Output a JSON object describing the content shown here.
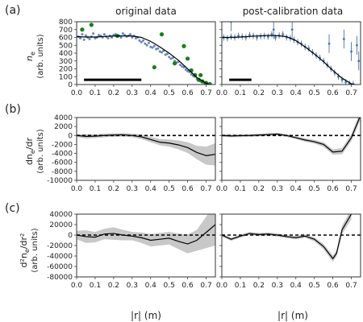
{
  "figure": {
    "columns": [
      "original data",
      "post-calibration data"
    ],
    "row_labels": [
      "(a)",
      "(b)",
      "(c)"
    ],
    "xlabel": "|r| (m)",
    "x_ticks": [
      0.0,
      0.1,
      0.2,
      0.3,
      0.4,
      0.5,
      0.6,
      0.7
    ],
    "ylabels": [
      [
        "n",
        "e",
        "(arb. units)"
      ],
      [
        "dn",
        "e",
        "/dr",
        "(arb. units)"
      ],
      [
        "d²n",
        "e",
        "/dr²",
        "(arb. units)"
      ]
    ],
    "colors": {
      "data": "#4c72b0",
      "outlier": "#1a7f1a",
      "band": "#c8c8c8",
      "fit": "#000000"
    }
  },
  "chart_data": [
    {
      "type": "scatter",
      "panel": "a-left",
      "xlim": [
        0,
        0.75
      ],
      "ylim": [
        0,
        800
      ],
      "yticks": [
        0,
        100,
        200,
        300,
        400,
        500,
        600,
        700,
        800
      ],
      "bar_extent": [
        0.04,
        0.35
      ],
      "series": [
        {
          "x": [
            0.01,
            0.02,
            0.03,
            0.04,
            0.05,
            0.06,
            0.07,
            0.08,
            0.09,
            0.1,
            0.11,
            0.12,
            0.13,
            0.14,
            0.15,
            0.16,
            0.17,
            0.18,
            0.19,
            0.2,
            0.21,
            0.22,
            0.23,
            0.24,
            0.25,
            0.26,
            0.27,
            0.28,
            0.29,
            0.3,
            0.31,
            0.32,
            0.33,
            0.34,
            0.35,
            0.36,
            0.37,
            0.38,
            0.39,
            0.4,
            0.41,
            0.42,
            0.43,
            0.44,
            0.45,
            0.46,
            0.47,
            0.48,
            0.49,
            0.5,
            0.51,
            0.52,
            0.53,
            0.54,
            0.55,
            0.56,
            0.57,
            0.58,
            0.59,
            0.6,
            0.61,
            0.62,
            0.63,
            0.64,
            0.65,
            0.66,
            0.67,
            0.68,
            0.69,
            0.7,
            0.71,
            0.72
          ],
          "y": [
            610,
            590,
            640,
            570,
            625,
            600,
            580,
            610,
            650,
            590,
            600,
            630,
            620,
            600,
            640,
            610,
            590,
            620,
            600,
            630,
            640,
            610,
            620,
            600,
            650,
            630,
            610,
            620,
            640,
            600,
            620,
            590,
            600,
            560,
            540,
            560,
            520,
            500,
            530,
            480,
            470,
            490,
            450,
            460,
            420,
            410,
            430,
            380,
            390,
            350,
            330,
            340,
            300,
            280,
            290,
            250,
            230,
            220,
            190,
            170,
            160,
            130,
            110,
            100,
            70,
            60,
            40,
            30,
            20,
            15,
            10,
            5
          ]
        },
        {
          "x": [
            0.03,
            0.08,
            0.22,
            0.42,
            0.46,
            0.53,
            0.58,
            0.6,
            0.62,
            0.64,
            0.66,
            0.67,
            0.68,
            0.7,
            0.72
          ],
          "y": [
            700,
            760,
            620,
            220,
            640,
            270,
            490,
            330,
            180,
            120,
            60,
            120,
            40,
            20,
            5
          ]
        }
      ],
      "fit": {
        "x": [
          0.0,
          0.05,
          0.1,
          0.15,
          0.2,
          0.25,
          0.3,
          0.35,
          0.4,
          0.45,
          0.5,
          0.55,
          0.6,
          0.65,
          0.7,
          0.72
        ],
        "y": [
          610,
          605,
          605,
          612,
          618,
          620,
          618,
          600,
          550,
          480,
          400,
          310,
          200,
          90,
          15,
          0
        ]
      }
    },
    {
      "type": "scatter",
      "panel": "a-right",
      "xlim": [
        0,
        0.75
      ],
      "ylim": [
        0,
        800
      ],
      "bar_extent": [
        0.04,
        0.16
      ],
      "series": [
        {
          "x": [
            0.01,
            0.03,
            0.05,
            0.07,
            0.09,
            0.11,
            0.13,
            0.15,
            0.17,
            0.19,
            0.21,
            0.23,
            0.25,
            0.27,
            0.29,
            0.31,
            0.33,
            0.35,
            0.37,
            0.39,
            0.41,
            0.43,
            0.45,
            0.47,
            0.49,
            0.51,
            0.53,
            0.55,
            0.57,
            0.59,
            0.61,
            0.63,
            0.65,
            0.67,
            0.69,
            0.71
          ],
          "y": [
            600,
            590,
            610,
            600,
            620,
            610,
            600,
            630,
            620,
            600,
            615,
            620,
            610,
            640,
            600,
            625,
            640,
            600,
            590,
            570,
            540,
            520,
            480,
            460,
            410,
            370,
            340,
            300,
            250,
            200,
            150,
            100,
            60,
            30,
            10,
            5
          ]
        },
        {
          "x": [
            0.05,
            0.28,
            0.38,
            0.58,
            0.66,
            0.7,
            0.73,
            0.74
          ],
          "y": [
            800,
            700,
            700,
            520,
            580,
            420,
            500,
            300
          ]
        }
      ],
      "fit": {
        "x": [
          0.0,
          0.05,
          0.1,
          0.15,
          0.2,
          0.25,
          0.3,
          0.35,
          0.4,
          0.45,
          0.5,
          0.55,
          0.6,
          0.65,
          0.7,
          0.72
        ],
        "y": [
          600,
          600,
          605,
          612,
          620,
          625,
          622,
          610,
          560,
          480,
          390,
          290,
          180,
          80,
          10,
          0
        ]
      }
    },
    {
      "type": "line",
      "panel": "b-left",
      "xlim": [
        0,
        0.75
      ],
      "ylim": [
        -10000,
        4000
      ],
      "yticks": [
        -10000,
        -8000,
        -6000,
        -4000,
        -2000,
        0,
        2000,
        4000
      ],
      "fit": {
        "x": [
          0.0,
          0.05,
          0.1,
          0.15,
          0.2,
          0.25,
          0.3,
          0.35,
          0.4,
          0.45,
          0.5,
          0.55,
          0.6,
          0.65,
          0.7,
          0.75
        ],
        "y": [
          0,
          -200,
          -150,
          0,
          100,
          150,
          0,
          -300,
          -900,
          -1500,
          -1700,
          -2100,
          -2700,
          -3800,
          -4500,
          -4200
        ]
      },
      "band_width": [
        300,
        500,
        400,
        400,
        400,
        400,
        400,
        500,
        600,
        700,
        800,
        1000,
        1200,
        1500,
        2000,
        2500
      ]
    },
    {
      "type": "line",
      "panel": "b-right",
      "xlim": [
        0,
        0.75
      ],
      "ylim": [
        -10000,
        4000
      ],
      "fit": {
        "x": [
          0.0,
          0.05,
          0.1,
          0.15,
          0.2,
          0.25,
          0.3,
          0.35,
          0.4,
          0.45,
          0.5,
          0.55,
          0.6,
          0.65,
          0.7,
          0.75
        ],
        "y": [
          0,
          -100,
          -50,
          0,
          100,
          200,
          300,
          0,
          -500,
          -1000,
          -1400,
          -2000,
          -3700,
          -3500,
          -500,
          4500
        ]
      },
      "band_width": [
        300,
        300,
        300,
        300,
        300,
        300,
        300,
        300,
        300,
        400,
        400,
        500,
        600,
        700,
        800,
        1000
      ]
    },
    {
      "type": "line",
      "panel": "c-left",
      "xlim": [
        0,
        0.75
      ],
      "ylim": [
        -80000,
        40000
      ],
      "yticks": [
        -80000,
        -60000,
        -40000,
        -20000,
        0,
        20000,
        40000
      ],
      "fit": {
        "x": [
          0.0,
          0.05,
          0.1,
          0.15,
          0.2,
          0.25,
          0.3,
          0.35,
          0.4,
          0.45,
          0.5,
          0.55,
          0.6,
          0.65,
          0.7,
          0.75
        ],
        "y": [
          0,
          -3000,
          -4000,
          2000,
          3000,
          0,
          -2000,
          -5000,
          -10000,
          -8000,
          -6000,
          -12000,
          -17000,
          -10000,
          5000,
          20000
        ]
      },
      "band_width": [
        8000,
        12000,
        10000,
        10000,
        12000,
        10000,
        8000,
        10000,
        12000,
        12000,
        12000,
        15000,
        18000,
        20000,
        30000,
        40000
      ]
    },
    {
      "type": "line",
      "panel": "c-right",
      "xlim": [
        0,
        0.75
      ],
      "ylim": [
        -80000,
        40000
      ],
      "fit": {
        "x": [
          0.0,
          0.05,
          0.1,
          0.15,
          0.2,
          0.25,
          0.3,
          0.35,
          0.4,
          0.45,
          0.5,
          0.55,
          0.6,
          0.62,
          0.65,
          0.7
        ],
        "y": [
          0,
          -8000,
          -2000,
          3000,
          1000,
          2000,
          0,
          -3000,
          -5000,
          -2000,
          -8000,
          -22000,
          -45000,
          -35000,
          10000,
          40000
        ]
      },
      "band_width": [
        3000,
        3000,
        3000,
        3000,
        3000,
        3000,
        3000,
        3000,
        3000,
        3000,
        4000,
        5000,
        6000,
        6000,
        8000,
        10000
      ]
    }
  ]
}
